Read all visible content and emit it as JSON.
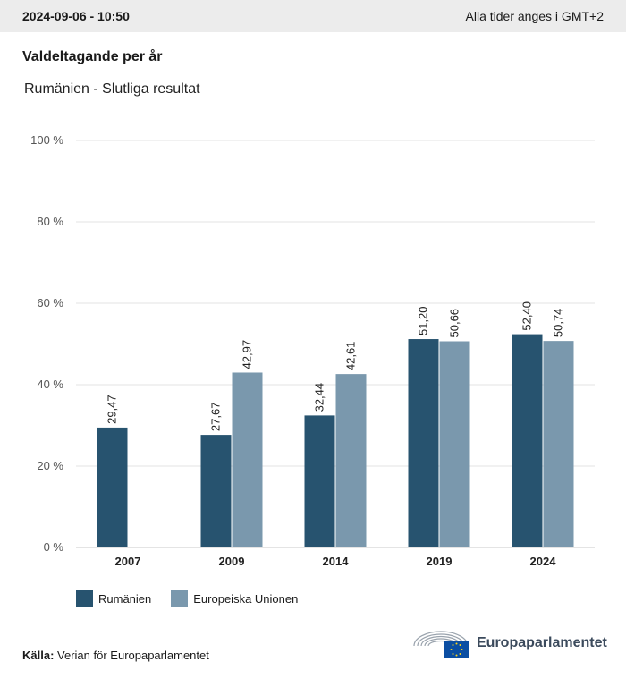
{
  "header": {
    "timestamp": "2024-09-06 - 10:50",
    "timezone_note": "Alla tider anges i GMT+2"
  },
  "title": "Valdeltagande per år",
  "subtitle": "Rumänien - Slutliga resultat",
  "colors": {
    "series_romania": "#27536f",
    "series_eu": "#7a98ad",
    "grid": "#e3e3e3",
    "axis": "#c8c8c8"
  },
  "chart_data": {
    "type": "bar",
    "title": "Valdeltagande per år",
    "subtitle": "Rumänien - Slutliga resultat",
    "categories": [
      "2007",
      "2009",
      "2014",
      "2019",
      "2024"
    ],
    "series": [
      {
        "name": "Rumänien",
        "values": [
          29.47,
          27.67,
          32.44,
          51.2,
          52.4
        ],
        "labels": [
          "29,47",
          "27,67",
          "32,44",
          "51,20",
          "52,40"
        ]
      },
      {
        "name": "Europeiska Unionen",
        "values": [
          null,
          42.97,
          42.61,
          50.66,
          50.74
        ],
        "labels": [
          "",
          "42,97",
          "42,61",
          "50,66",
          "50,74"
        ]
      }
    ],
    "yticks": [
      0,
      20,
      40,
      60,
      80,
      100
    ],
    "ytick_labels": [
      "0 %",
      "20 %",
      "40 %",
      "60 %",
      "80 %",
      "100 %"
    ],
    "ylim": [
      0,
      100
    ],
    "xlabel": "",
    "ylabel": "",
    "grid": true,
    "legend_position": "bottom-left"
  },
  "legend": {
    "romania": "Rumänien",
    "eu": "Europeiska Unionen"
  },
  "source": {
    "label": "Källa:",
    "text": "Verian för Europaparlamentet"
  },
  "logo": {
    "name": "Europaparlamentet",
    "icon": "european-parliament-logo-icon"
  }
}
